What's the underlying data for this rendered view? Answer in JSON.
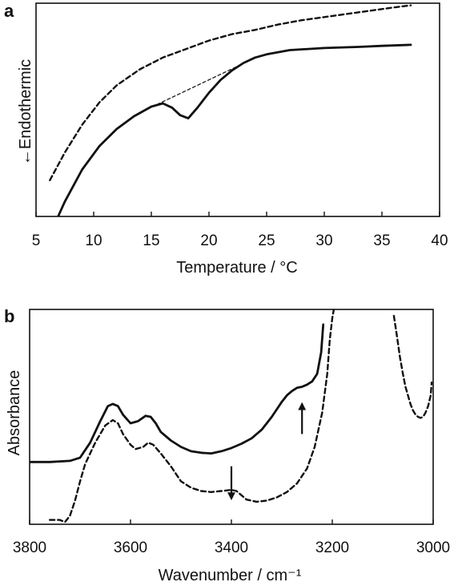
{
  "chart_data": [
    {
      "panel": "a",
      "type": "line",
      "xlabel": "Temperature  / °C",
      "ylabel": "←Endothermic",
      "xlim": [
        5,
        40
      ],
      "x_ticks": [
        5,
        10,
        15,
        20,
        25,
        30,
        35,
        40
      ],
      "y_ticks_shown": false,
      "grid": false,
      "series": [
        {
          "style": "solid",
          "x": [
            6.5,
            7.5,
            9,
            10.5,
            12,
            13.5,
            15,
            16,
            16.8,
            17.5,
            18.2,
            19,
            20,
            21,
            22,
            23,
            24,
            25,
            27,
            30,
            33,
            35,
            37.5
          ],
          "y": [
            -0.05,
            0.07,
            0.22,
            0.33,
            0.41,
            0.47,
            0.515,
            0.53,
            0.51,
            0.475,
            0.46,
            0.51,
            0.58,
            0.64,
            0.685,
            0.72,
            0.745,
            0.76,
            0.78,
            0.79,
            0.795,
            0.8,
            0.805
          ]
        },
        {
          "style": "dashed",
          "x": [
            6.2,
            7.5,
            9,
            10.5,
            12,
            14,
            16,
            18,
            20,
            22,
            24,
            26,
            28,
            30,
            32,
            34,
            36,
            37.5
          ],
          "y": [
            0.17,
            0.3,
            0.43,
            0.535,
            0.615,
            0.69,
            0.745,
            0.785,
            0.825,
            0.855,
            0.875,
            0.9,
            0.92,
            0.935,
            0.95,
            0.965,
            0.98,
            0.99
          ]
        },
        {
          "style": "dashed-thin",
          "x": [
            15.5,
            22.5
          ],
          "y": [
            0.525,
            0.705
          ]
        }
      ]
    },
    {
      "panel": "b",
      "type": "line",
      "xlabel": "Wavenumber / cm⁻¹",
      "ylabel": "Absorbance",
      "xlim": [
        3800,
        3000
      ],
      "x_ticks": [
        3800,
        3600,
        3400,
        3200,
        3000
      ],
      "y_ticks_shown": false,
      "grid": false,
      "annotations": [
        {
          "type": "arrow-up",
          "x": 3260,
          "y_from": 0.42,
          "y_to": 0.55
        },
        {
          "type": "arrow-down",
          "x": 3400,
          "y_from": 0.27,
          "y_to": 0.13
        }
      ],
      "series": [
        {
          "style": "solid",
          "x": [
            3800,
            3760,
            3720,
            3700,
            3680,
            3660,
            3645,
            3635,
            3625,
            3615,
            3600,
            3585,
            3570,
            3560,
            3550,
            3540,
            3520,
            3500,
            3480,
            3460,
            3440,
            3420,
            3400,
            3380,
            3360,
            3340,
            3320,
            3300,
            3290,
            3280,
            3270,
            3260,
            3250,
            3240,
            3230,
            3222,
            3218
          ],
          "y": [
            0.29,
            0.29,
            0.295,
            0.31,
            0.38,
            0.48,
            0.55,
            0.56,
            0.55,
            0.51,
            0.47,
            0.48,
            0.505,
            0.5,
            0.47,
            0.43,
            0.39,
            0.36,
            0.34,
            0.333,
            0.33,
            0.34,
            0.355,
            0.375,
            0.4,
            0.44,
            0.5,
            0.57,
            0.6,
            0.62,
            0.635,
            0.64,
            0.65,
            0.665,
            0.7,
            0.8,
            0.93
          ]
        },
        {
          "style": "dashed",
          "x": [
            3760,
            3740,
            3730,
            3720,
            3710,
            3700,
            3690,
            3670,
            3650,
            3635,
            3625,
            3615,
            3600,
            3590,
            3575,
            3565,
            3555,
            3540,
            3520,
            3500,
            3480,
            3460,
            3440,
            3420,
            3400,
            3390,
            3380,
            3370,
            3350,
            3330,
            3310,
            3290,
            3270,
            3250,
            3235,
            3220,
            3210,
            3205,
            3200,
            3197
          ],
          "y": [
            0.02,
            0.02,
            0.01,
            0.04,
            0.11,
            0.2,
            0.28,
            0.38,
            0.46,
            0.485,
            0.47,
            0.42,
            0.37,
            0.35,
            0.36,
            0.38,
            0.37,
            0.33,
            0.27,
            0.2,
            0.17,
            0.155,
            0.15,
            0.155,
            0.16,
            0.155,
            0.135,
            0.115,
            0.105,
            0.11,
            0.125,
            0.15,
            0.19,
            0.26,
            0.36,
            0.52,
            0.7,
            0.86,
            0.96,
            1.0
          ]
        },
        {
          "style": "dashed",
          "x": [
            3078,
            3072,
            3066,
            3060,
            3055,
            3050,
            3045,
            3040,
            3035,
            3030,
            3025,
            3020,
            3015,
            3010,
            3005,
            3003
          ],
          "y": [
            0.97,
            0.88,
            0.78,
            0.7,
            0.64,
            0.6,
            0.56,
            0.53,
            0.51,
            0.5,
            0.495,
            0.5,
            0.52,
            0.55,
            0.6,
            0.66
          ]
        }
      ]
    }
  ]
}
